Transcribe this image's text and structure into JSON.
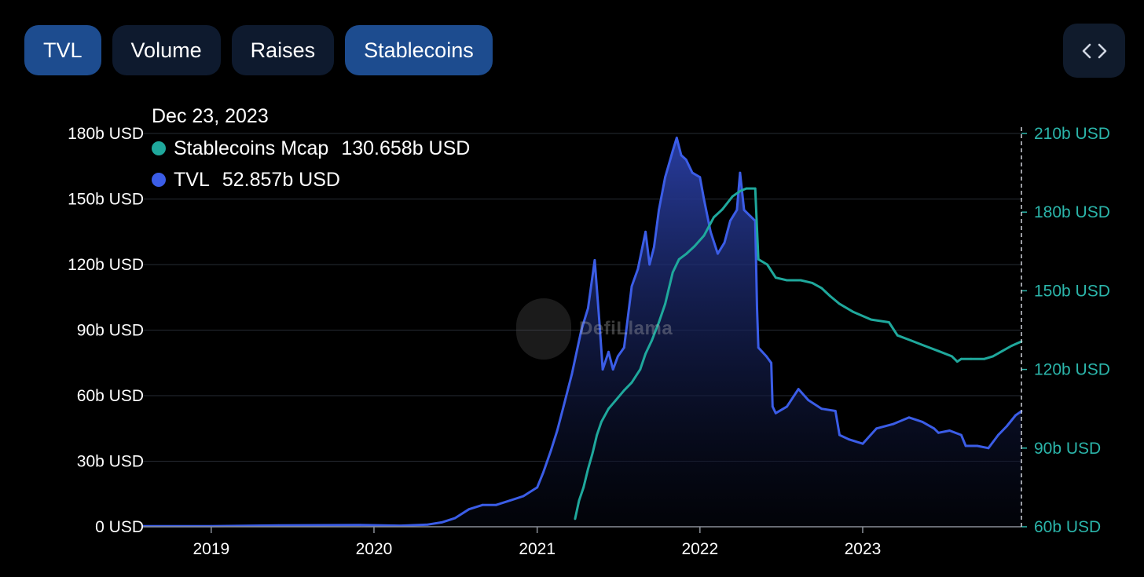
{
  "tabs": [
    {
      "label": "TVL",
      "active": true
    },
    {
      "label": "Volume",
      "active": false
    },
    {
      "label": "Raises",
      "active": false
    },
    {
      "label": "Stablecoins",
      "active": true
    }
  ],
  "embed_icon": "code-brackets-icon",
  "tooltip": {
    "date": "Dec 23, 2023",
    "rows": [
      {
        "name": "Stablecoins Mcap",
        "value": "130.658b USD",
        "color": "#1fa89c"
      },
      {
        "name": "TVL",
        "value": "52.857b USD",
        "color": "#3b5de7"
      }
    ]
  },
  "watermark": "DefiLlama",
  "chart_data": {
    "type": "line",
    "title": "",
    "x_tick_labels": [
      "2019",
      "2020",
      "2021",
      "2022",
      "2023"
    ],
    "x_range": [
      "2018-08-01",
      "2023-12-23"
    ],
    "left_axis": {
      "ticks": [
        "0 USD",
        "30b USD",
        "60b USD",
        "90b USD",
        "120b USD",
        "150b USD",
        "180b USD"
      ],
      "range": [
        0,
        180
      ]
    },
    "right_axis": {
      "ticks": [
        "60b USD",
        "90b USD",
        "120b USD",
        "150b USD",
        "180b USD",
        "210b USD"
      ],
      "range": [
        60,
        210
      ]
    },
    "grid": true,
    "series": [
      {
        "name": "TVL",
        "axis": "left",
        "unit": "b USD",
        "color": "#3b5de7",
        "fill": "area",
        "points": [
          [
            "2018-08-01",
            0.3
          ],
          [
            "2019-01-01",
            0.3
          ],
          [
            "2019-06-01",
            0.6
          ],
          [
            "2019-12-01",
            0.8
          ],
          [
            "2020-03-01",
            0.5
          ],
          [
            "2020-05-01",
            1
          ],
          [
            "2020-06-01",
            2
          ],
          [
            "2020-07-01",
            4
          ],
          [
            "2020-08-01",
            8
          ],
          [
            "2020-09-01",
            10
          ],
          [
            "2020-10-01",
            10
          ],
          [
            "2020-11-01",
            12
          ],
          [
            "2020-12-01",
            14
          ],
          [
            "2021-01-01",
            18
          ],
          [
            "2021-01-15",
            25
          ],
          [
            "2021-02-01",
            35
          ],
          [
            "2021-02-15",
            44
          ],
          [
            "2021-03-01",
            55
          ],
          [
            "2021-03-20",
            70
          ],
          [
            "2021-04-10",
            90
          ],
          [
            "2021-04-25",
            100
          ],
          [
            "2021-05-10",
            122
          ],
          [
            "2021-05-20",
            95
          ],
          [
            "2021-05-28",
            72
          ],
          [
            "2021-06-10",
            80
          ],
          [
            "2021-06-20",
            72
          ],
          [
            "2021-07-01",
            78
          ],
          [
            "2021-07-15",
            82
          ],
          [
            "2021-08-01",
            110
          ],
          [
            "2021-08-15",
            118
          ],
          [
            "2021-09-01",
            135
          ],
          [
            "2021-09-10",
            120
          ],
          [
            "2021-09-20",
            128
          ],
          [
            "2021-10-01",
            145
          ],
          [
            "2021-10-15",
            160
          ],
          [
            "2021-11-01",
            172
          ],
          [
            "2021-11-10",
            178
          ],
          [
            "2021-11-20",
            170
          ],
          [
            "2021-12-01",
            168
          ],
          [
            "2021-12-15",
            162
          ],
          [
            "2022-01-01",
            160
          ],
          [
            "2022-01-10",
            150
          ],
          [
            "2022-01-25",
            135
          ],
          [
            "2022-02-10",
            125
          ],
          [
            "2022-02-25",
            130
          ],
          [
            "2022-03-10",
            140
          ],
          [
            "2022-03-25",
            145
          ],
          [
            "2022-04-01",
            162
          ],
          [
            "2022-04-10",
            145
          ],
          [
            "2022-04-25",
            142
          ],
          [
            "2022-05-05",
            140
          ],
          [
            "2022-05-09",
            100
          ],
          [
            "2022-05-12",
            82
          ],
          [
            "2022-05-30",
            78
          ],
          [
            "2022-06-10",
            75
          ],
          [
            "2022-06-13",
            55
          ],
          [
            "2022-06-20",
            52
          ],
          [
            "2022-07-15",
            55
          ],
          [
            "2022-08-10",
            63
          ],
          [
            "2022-09-01",
            58
          ],
          [
            "2022-10-01",
            54
          ],
          [
            "2022-11-01",
            53
          ],
          [
            "2022-11-10",
            42
          ],
          [
            "2022-12-01",
            40
          ],
          [
            "2023-01-01",
            38
          ],
          [
            "2023-02-01",
            45
          ],
          [
            "2023-03-10",
            47
          ],
          [
            "2023-04-15",
            50
          ],
          [
            "2023-05-15",
            48
          ],
          [
            "2023-06-10",
            45
          ],
          [
            "2023-06-20",
            43
          ],
          [
            "2023-07-15",
            44
          ],
          [
            "2023-08-10",
            42
          ],
          [
            "2023-08-20",
            37
          ],
          [
            "2023-09-15",
            37
          ],
          [
            "2023-10-10",
            36
          ],
          [
            "2023-11-01",
            42
          ],
          [
            "2023-11-20",
            46
          ],
          [
            "2023-12-10",
            51
          ],
          [
            "2023-12-23",
            52.857
          ]
        ]
      },
      {
        "name": "Stablecoins Mcap",
        "axis": "right",
        "unit": "b USD",
        "color": "#1fa89c",
        "fill": "none",
        "points": [
          [
            "2021-03-27",
            63
          ],
          [
            "2021-04-05",
            70
          ],
          [
            "2021-04-15",
            75
          ],
          [
            "2021-04-25",
            82
          ],
          [
            "2021-05-05",
            88
          ],
          [
            "2021-05-15",
            95
          ],
          [
            "2021-05-25",
            100
          ],
          [
            "2021-06-10",
            105
          ],
          [
            "2021-06-25",
            108
          ],
          [
            "2021-07-15",
            112
          ],
          [
            "2021-08-01",
            115
          ],
          [
            "2021-08-20",
            120
          ],
          [
            "2021-09-01",
            126
          ],
          [
            "2021-09-15",
            131
          ],
          [
            "2021-10-01",
            138
          ],
          [
            "2021-10-15",
            145
          ],
          [
            "2021-11-01",
            157
          ],
          [
            "2021-11-15",
            162
          ],
          [
            "2021-12-01",
            164
          ],
          [
            "2021-12-20",
            167
          ],
          [
            "2022-01-10",
            171
          ],
          [
            "2022-02-01",
            178
          ],
          [
            "2022-02-20",
            181
          ],
          [
            "2022-03-15",
            186
          ],
          [
            "2022-04-01",
            188
          ],
          [
            "2022-04-15",
            189
          ],
          [
            "2022-05-05",
            189
          ],
          [
            "2022-05-12",
            162
          ],
          [
            "2022-06-01",
            160
          ],
          [
            "2022-06-20",
            155
          ],
          [
            "2022-07-15",
            154
          ],
          [
            "2022-08-15",
            154
          ],
          [
            "2022-09-10",
            153
          ],
          [
            "2022-10-01",
            151
          ],
          [
            "2022-10-20",
            148
          ],
          [
            "2022-11-10",
            145
          ],
          [
            "2022-12-10",
            142
          ],
          [
            "2023-01-20",
            139
          ],
          [
            "2023-03-01",
            138
          ],
          [
            "2023-03-20",
            133
          ],
          [
            "2023-04-20",
            131
          ],
          [
            "2023-05-20",
            129
          ],
          [
            "2023-06-20",
            127
          ],
          [
            "2023-07-20",
            125
          ],
          [
            "2023-08-01",
            123
          ],
          [
            "2023-08-10",
            124
          ],
          [
            "2023-09-01",
            124
          ],
          [
            "2023-10-01",
            124
          ],
          [
            "2023-10-20",
            125
          ],
          [
            "2023-11-10",
            127
          ],
          [
            "2023-12-01",
            129
          ],
          [
            "2023-12-23",
            130.658
          ]
        ]
      }
    ]
  }
}
